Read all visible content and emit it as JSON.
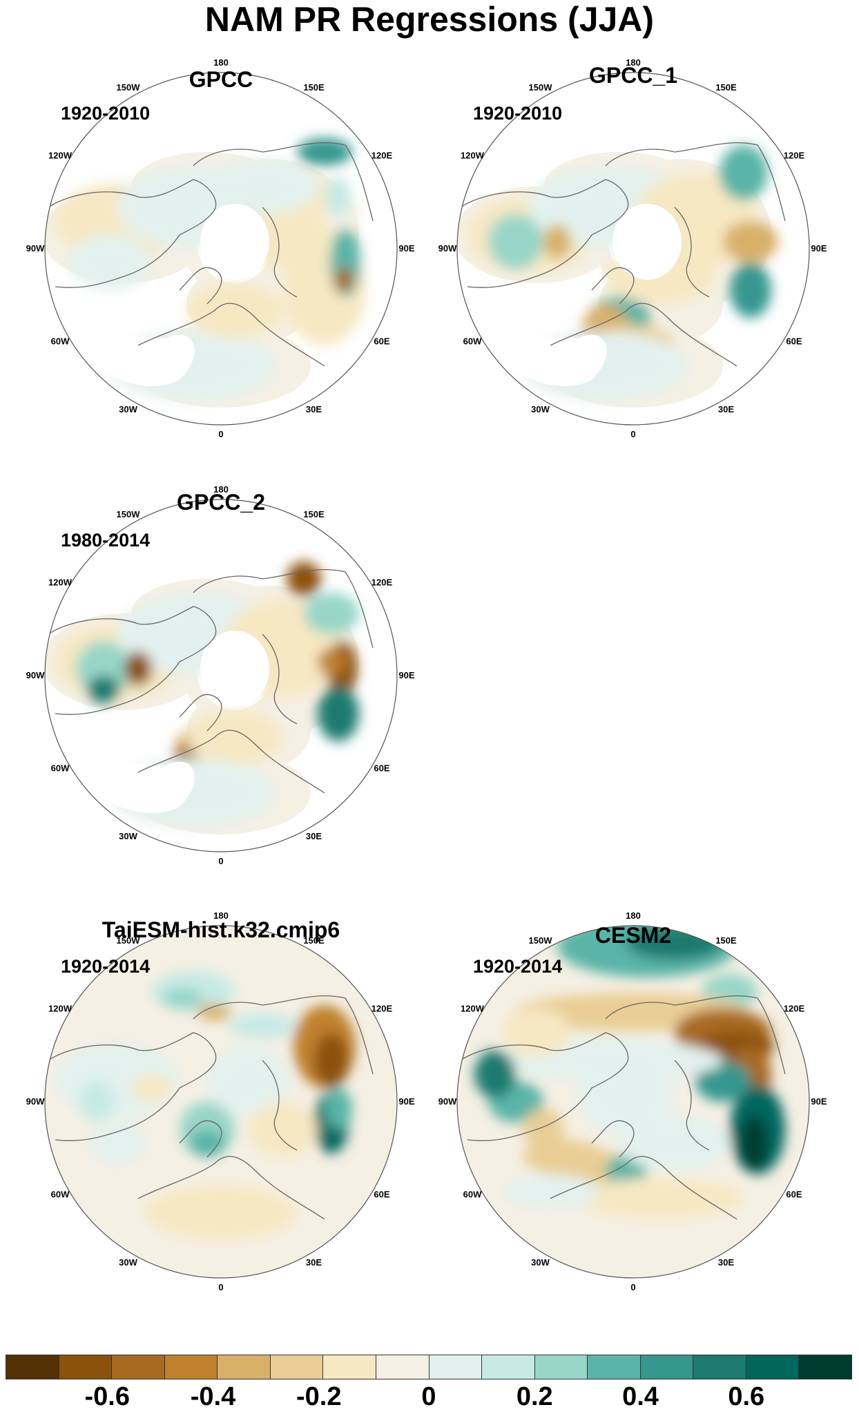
{
  "title": "NAM PR Regressions (JJA)",
  "lon_labels": [
    "180",
    "150E",
    "120E",
    "90E",
    "60E",
    "30E",
    "0",
    "30W",
    "60W",
    "90W",
    "120W",
    "150W"
  ],
  "panels": [
    {
      "title": "GPCC",
      "period": "1920-2010",
      "pattern": "obs_a"
    },
    {
      "title": "GPCC_1",
      "period": "1920-2010",
      "pattern": "obs_b"
    },
    {
      "title": "GPCC_2",
      "period": "1980-2014",
      "pattern": "obs_c"
    },
    {
      "title": "TaiESM-hist.k32.cmip6",
      "period": "1920-2014",
      "pattern": "model_a"
    },
    {
      "title": "CESM2",
      "period": "1920-2014",
      "pattern": "model_b"
    }
  ],
  "colorbar": {
    "colors": [
      "#543005",
      "#8c510a",
      "#a86a20",
      "#bf812d",
      "#d8b06a",
      "#e9cd94",
      "#f6e8c3",
      "#f5f0e4",
      "#e3f1ee",
      "#c7eae5",
      "#97d6c8",
      "#5ab4a7",
      "#35978f",
      "#1c7a70",
      "#01665e",
      "#003c30"
    ],
    "labels": [
      "-0.6",
      "-0.4",
      "-0.2",
      "0",
      "0.2",
      "0.4",
      "0.6"
    ]
  }
}
